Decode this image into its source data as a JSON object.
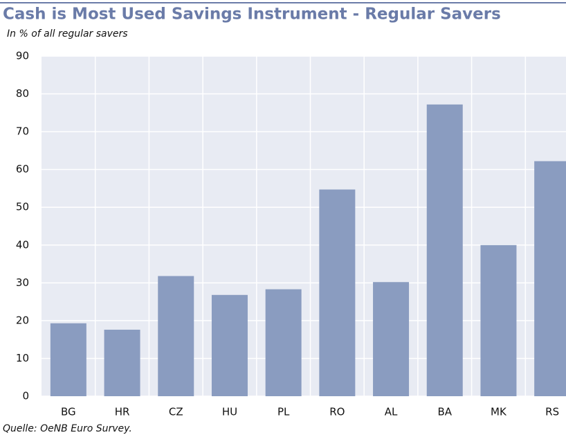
{
  "chart_data": {
    "type": "bar",
    "title": "Cash is Most Used Savings Instrument - Regular Savers",
    "subtitle": "In % of all regular savers",
    "source": "Quelle: OeNB Euro Survey.",
    "categories": [
      "BG",
      "HR",
      "CZ",
      "HU",
      "PL",
      "RO",
      "AL",
      "BA",
      "MK",
      "RS"
    ],
    "values": [
      19.3,
      17.6,
      31.8,
      26.8,
      28.3,
      54.7,
      30.2,
      77.2,
      40,
      62.2
    ],
    "color": "#8a9cc0",
    "ylim": [
      0,
      90
    ],
    "yticks": [
      0,
      10,
      20,
      30,
      40,
      50,
      60,
      70,
      80,
      90
    ],
    "grid": true
  }
}
